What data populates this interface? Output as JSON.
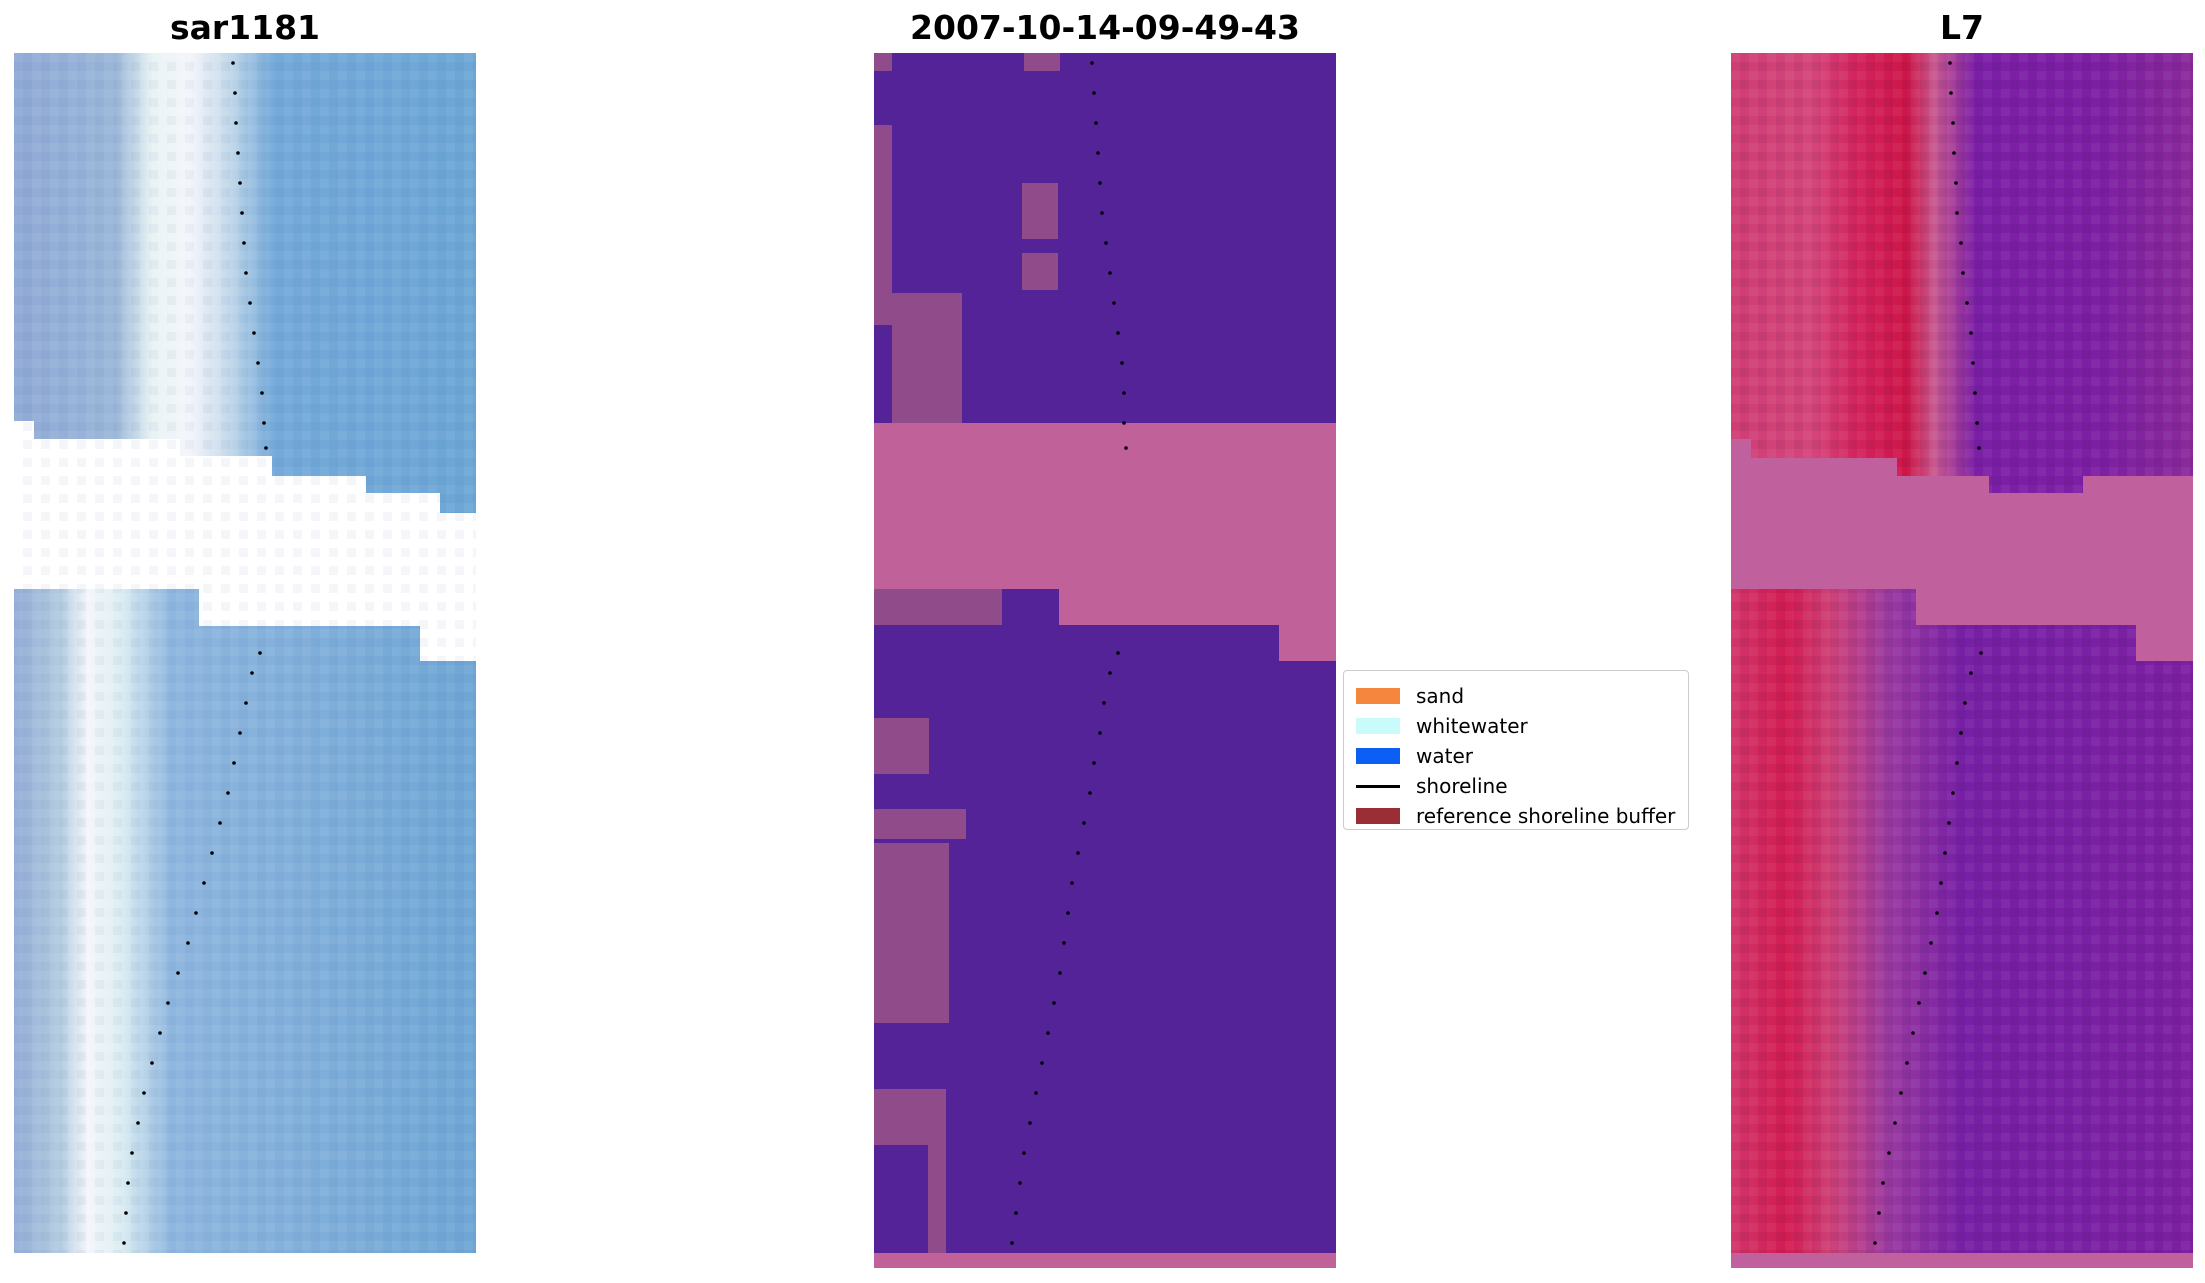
{
  "panels": [
    {
      "title": "sar1181"
    },
    {
      "title": "2007-10-14-09-49-43"
    },
    {
      "title": "L7"
    }
  ],
  "legend": {
    "items": [
      {
        "label": "sand",
        "color": "#f4863e",
        "kind": "patch"
      },
      {
        "label": "whitewater",
        "color": "#c9fbfb",
        "kind": "patch"
      },
      {
        "label": "water",
        "color": "#0b5ff5",
        "kind": "patch"
      },
      {
        "label": "shoreline",
        "color": "#000000",
        "kind": "line"
      },
      {
        "label": "reference shoreline buffer",
        "color": "#9a2e36",
        "kind": "patch"
      }
    ]
  },
  "colors": {
    "rgb_water": "#6ea6d6",
    "rgb_sand": "#f0f3fb",
    "classified_water": "#532397",
    "classified_buffer": "#c0619a",
    "l7_water": "#7d1fa3",
    "l7_sand": "#d51a55",
    "l7_buffer": "#c0609c",
    "shoreline_dots": "#000000"
  }
}
